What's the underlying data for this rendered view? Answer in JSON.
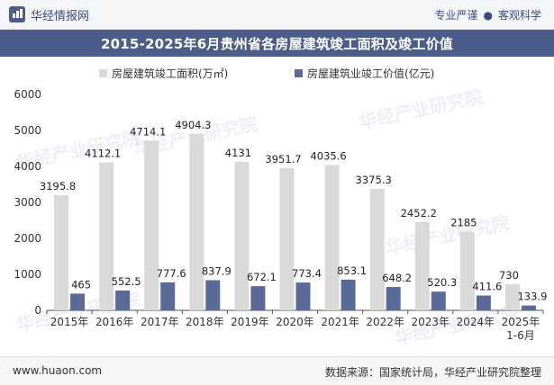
{
  "header": {
    "logo_text": "华经情报网",
    "right_items": [
      "专业严谨",
      "客观科学"
    ],
    "separator": "●"
  },
  "title": "2015-2025年6月贵州省各房屋建筑竣工面积及竣工价值",
  "footer": {
    "website": "www.huaon.com",
    "source": "数据来源：国家统计局，华经产业研究院整理"
  },
  "watermarks": [
    "华经产业研究院",
    "www.huaon.com"
  ],
  "colors": {
    "bar_area": "#d9d9d9",
    "bar_value": "#5b6b98",
    "accent": "#4d5d89"
  },
  "chart_data": {
    "type": "bar",
    "title": "2015-2025年6月贵州省各房屋建筑竣工面积及竣工价值",
    "categories": [
      "2015年",
      "2016年",
      "2017年",
      "2018年",
      "2019年",
      "2020年",
      "2021年",
      "2022年",
      "2023年",
      "2024年",
      "2025年\n1-6月"
    ],
    "series": [
      {
        "name": "房屋建筑竣工面积(万m²)",
        "legend": "房屋建筑竣工面积(万㎡)",
        "labels": [
          "3195.8",
          "4112.1",
          "4714.1",
          "4904.3",
          "4131",
          "3951.7",
          "4035.6",
          "3375.3",
          "2452.2",
          "2185",
          "730"
        ],
        "values": [
          3195.8,
          4112.1,
          4714.1,
          4904.3,
          4131,
          3951.7,
          4035.6,
          3375.3,
          2452.2,
          2185,
          730
        ]
      },
      {
        "name": "房屋建筑业竣工价值(亿元)",
        "legend": "房屋建筑业竣工价值(亿元)",
        "labels": [
          "465",
          "552.5",
          "777.6",
          "837.9",
          "672.1",
          "773.4",
          "853.1",
          "648.2",
          "520.3",
          "411.6",
          "133.9"
        ],
        "values": [
          465,
          552.5,
          777.6,
          837.9,
          672.1,
          773.4,
          853.1,
          648.2,
          520.3,
          411.6,
          133.9
        ]
      }
    ],
    "ylim": [
      0,
      6000
    ],
    "yticks": [
      "0",
      "1000",
      "2000",
      "3000",
      "4000",
      "5000",
      "6000"
    ],
    "ytick_values": [
      0,
      1000,
      2000,
      3000,
      4000,
      5000,
      6000
    ],
    "legend_position": "top-center",
    "grid": false
  }
}
